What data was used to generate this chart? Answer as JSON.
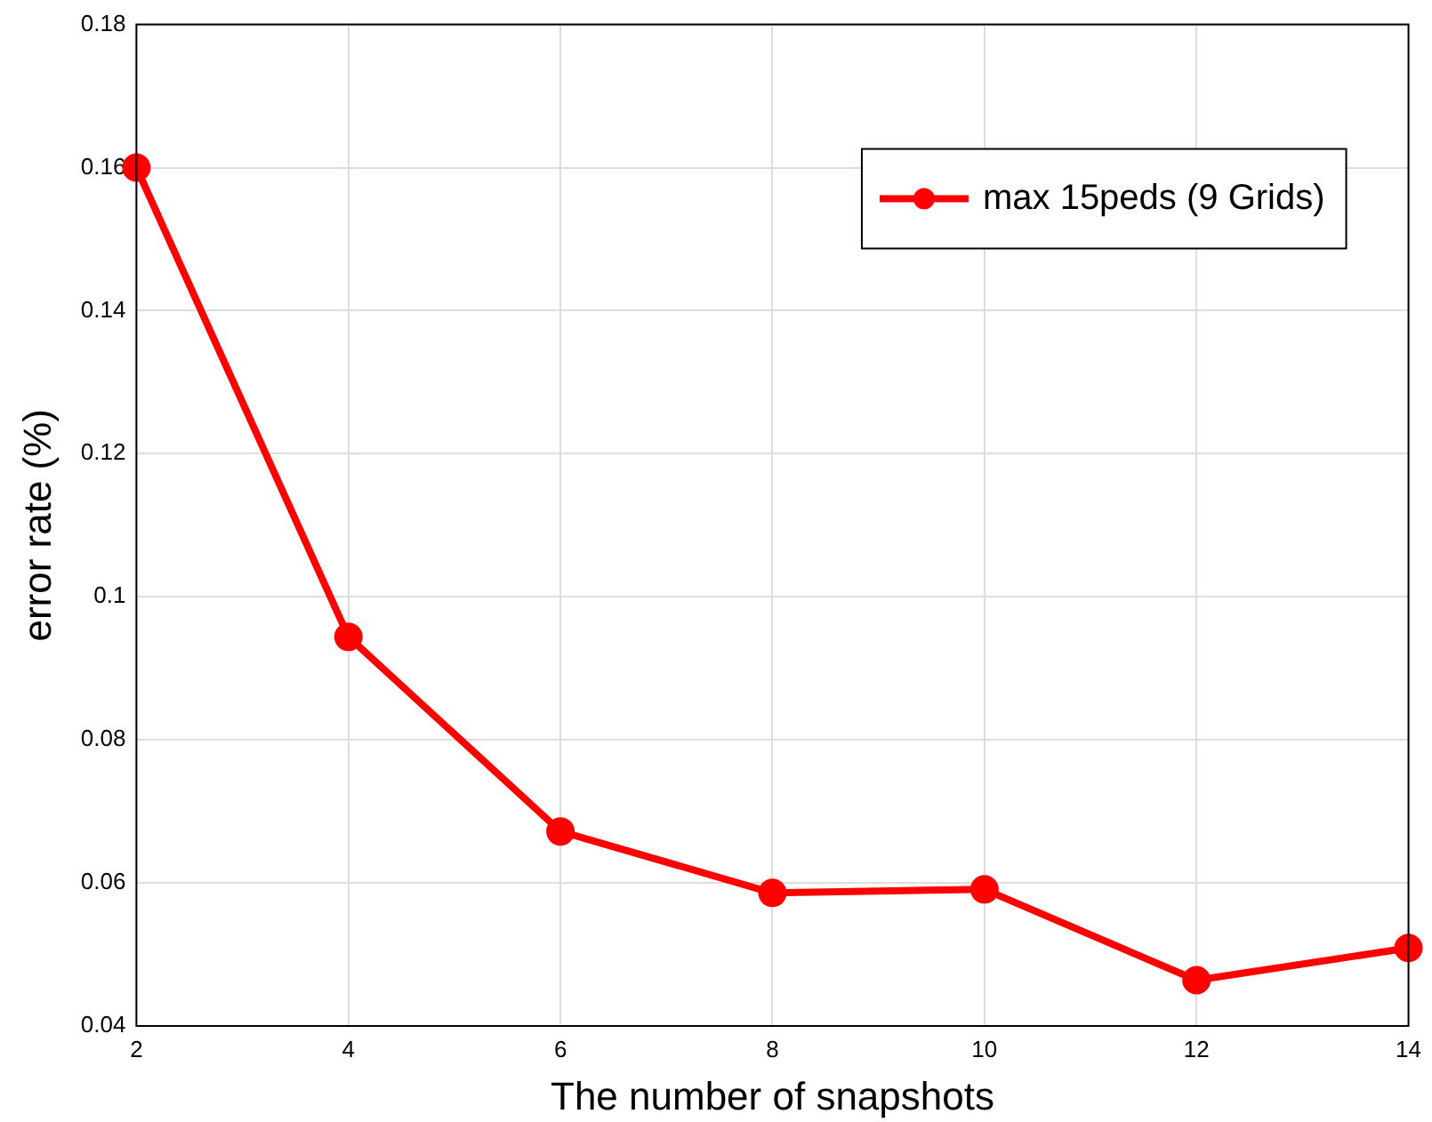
{
  "chart_data": {
    "type": "line",
    "xlabel": "The number of snapshots",
    "ylabel": "error rate (%)",
    "x": [
      2,
      4,
      6,
      8,
      10,
      12,
      14
    ],
    "series": [
      {
        "name": "max 15peds (9 Grids)",
        "color": "#ff0000",
        "values": [
          0.16,
          0.0944,
          0.0672,
          0.0586,
          0.0591,
          0.0464,
          0.0509
        ]
      }
    ],
    "xlim": [
      2,
      14
    ],
    "xticks": [
      2,
      4,
      6,
      8,
      10,
      12,
      14
    ],
    "ylim": [
      0.04,
      0.18
    ],
    "yticks": [
      0.04,
      0.06,
      0.08,
      0.1,
      0.12,
      0.14,
      0.16,
      0.18
    ],
    "grid": true,
    "legend": "top right",
    "marker": "circle",
    "line_style": "solid"
  }
}
